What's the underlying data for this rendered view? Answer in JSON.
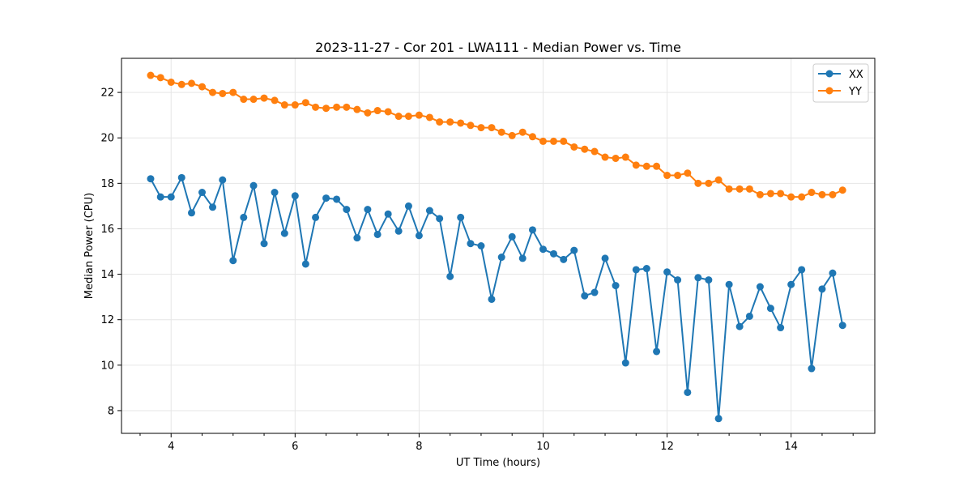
{
  "chart_data": {
    "type": "line",
    "title": "2023-11-27 - Cor 201 - LWA111 - Median Power vs. Time",
    "xlabel": "UT Time (hours)",
    "ylabel": "Median Power (CPU)",
    "xlim": [
      3.2,
      15.35
    ],
    "ylim": [
      7.0,
      23.5
    ],
    "xticks": [
      4,
      6,
      8,
      10,
      12,
      14
    ],
    "xticks_minor": [
      3.5,
      4.5,
      5,
      5.5,
      6.5,
      7,
      7.5,
      8.5,
      9,
      9.5,
      10.5,
      11,
      11.5,
      12.5,
      13,
      13.5,
      14.5,
      15
    ],
    "yticks": [
      8,
      10,
      12,
      14,
      16,
      18,
      20,
      22
    ],
    "grid": true,
    "legend_position": "top-right",
    "x": [
      3.67,
      3.83,
      4.0,
      4.17,
      4.33,
      4.5,
      4.67,
      4.83,
      5.0,
      5.17,
      5.33,
      5.5,
      5.67,
      5.83,
      6.0,
      6.17,
      6.33,
      6.5,
      6.67,
      6.83,
      7.0,
      7.17,
      7.33,
      7.5,
      7.67,
      7.83,
      8.0,
      8.17,
      8.33,
      8.5,
      8.67,
      8.83,
      9.0,
      9.17,
      9.33,
      9.5,
      9.67,
      9.83,
      10.0,
      10.17,
      10.33,
      10.5,
      10.67,
      10.83,
      11.0,
      11.17,
      11.33,
      11.5,
      11.67,
      11.83,
      12.0,
      12.17,
      12.33,
      12.5,
      12.67,
      12.83,
      13.0,
      13.17,
      13.33,
      13.5,
      13.67,
      13.83,
      14.0,
      14.17,
      14.33,
      14.5,
      14.67,
      14.83
    ],
    "series": [
      {
        "name": "XX",
        "color": "#1f77b4",
        "values": [
          18.2,
          17.4,
          17.4,
          18.25,
          16.7,
          17.6,
          16.95,
          18.15,
          14.6,
          16.5,
          17.9,
          15.35,
          17.6,
          15.8,
          17.45,
          14.45,
          16.5,
          17.35,
          17.3,
          16.85,
          15.6,
          16.85,
          15.75,
          16.65,
          15.9,
          17.0,
          15.7,
          16.8,
          16.45,
          13.9,
          16.5,
          15.35,
          15.25,
          12.9,
          14.75,
          15.65,
          14.7,
          15.95,
          15.1,
          14.9,
          14.65,
          15.05,
          13.05,
          13.2,
          14.7,
          13.5,
          10.1,
          14.2,
          14.25,
          10.6,
          14.1,
          13.75,
          8.8,
          13.85,
          13.75,
          7.65,
          13.55,
          11.7,
          12.15,
          13.45,
          12.5,
          11.65,
          13.55,
          14.2,
          9.85,
          13.35,
          14.05,
          11.75
        ]
      },
      {
        "name": "YY",
        "color": "#ff7f0e",
        "values": [
          22.75,
          22.65,
          22.45,
          22.35,
          22.4,
          22.25,
          22.0,
          21.95,
          22.0,
          21.7,
          21.7,
          21.75,
          21.65,
          21.45,
          21.45,
          21.55,
          21.35,
          21.3,
          21.35,
          21.35,
          21.25,
          21.1,
          21.2,
          21.15,
          20.95,
          20.95,
          21.0,
          20.9,
          20.7,
          20.7,
          20.65,
          20.55,
          20.45,
          20.45,
          20.25,
          20.1,
          20.25,
          20.05,
          19.85,
          19.85,
          19.85,
          19.6,
          19.5,
          19.4,
          19.15,
          19.1,
          19.15,
          18.8,
          18.75,
          18.75,
          18.35,
          18.35,
          18.45,
          18.0,
          18.0,
          18.15,
          17.75,
          17.75,
          17.75,
          17.5,
          17.55,
          17.55,
          17.4,
          17.4,
          17.6,
          17.5,
          17.5,
          17.7
        ]
      }
    ]
  }
}
